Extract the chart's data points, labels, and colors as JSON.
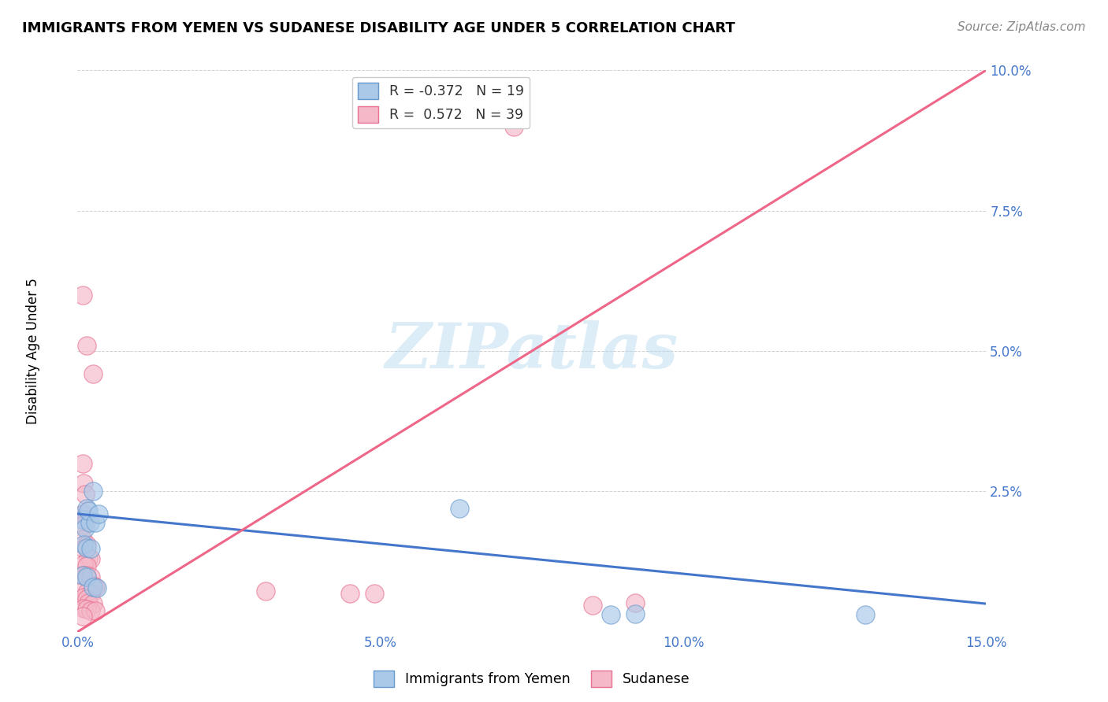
{
  "title": "IMMIGRANTS FROM YEMEN VS SUDANESE DISABILITY AGE UNDER 5 CORRELATION CHART",
  "source": "Source: ZipAtlas.com",
  "ylabel_label": "Disability Age Under 5",
  "legend_label1": "Immigrants from Yemen",
  "legend_label2": "Sudanese",
  "R_blue": -0.372,
  "N_blue": 19,
  "R_pink": 0.572,
  "N_pink": 39,
  "xlim": [
    0.0,
    0.15
  ],
  "ylim": [
    0.0,
    0.1
  ],
  "xticks": [
    0.0,
    0.025,
    0.05,
    0.075,
    0.1,
    0.125,
    0.15
  ],
  "yticks": [
    0.0,
    0.025,
    0.05,
    0.075,
    0.1
  ],
  "xtick_labels": [
    "0.0%",
    "",
    "5.0%",
    "",
    "10.0%",
    "",
    "15.0%"
  ],
  "ytick_labels": [
    "",
    "2.5%",
    "5.0%",
    "7.5%",
    "10.0%"
  ],
  "blue_scatter_fill": "#aac8e8",
  "blue_scatter_edge": "#6699cc",
  "pink_scatter_fill": "#f4b8c8",
  "pink_scatter_edge": "#e87090",
  "blue_line_color": "#4477cc",
  "pink_line_color": "#ee6688",
  "watermark": "ZIPatlas",
  "blue_scatter": [
    [
      0.0008,
      0.02
    ],
    [
      0.0012,
      0.0185
    ],
    [
      0.0015,
      0.022
    ],
    [
      0.002,
      0.0195
    ],
    [
      0.0025,
      0.025
    ],
    [
      0.0018,
      0.0215
    ],
    [
      0.003,
      0.0195
    ],
    [
      0.0035,
      0.021
    ],
    [
      0.001,
      0.0155
    ],
    [
      0.0015,
      0.015
    ],
    [
      0.0022,
      0.0148
    ],
    [
      0.0008,
      0.01
    ],
    [
      0.0015,
      0.0098
    ],
    [
      0.0025,
      0.008
    ],
    [
      0.0032,
      0.0078
    ],
    [
      0.063,
      0.022
    ],
    [
      0.13,
      0.003
    ],
    [
      0.088,
      0.003
    ],
    [
      0.092,
      0.0032
    ]
  ],
  "pink_scatter": [
    [
      0.0008,
      0.06
    ],
    [
      0.0015,
      0.051
    ],
    [
      0.0025,
      0.046
    ],
    [
      0.0008,
      0.03
    ],
    [
      0.001,
      0.0265
    ],
    [
      0.0012,
      0.0245
    ],
    [
      0.0008,
      0.021
    ],
    [
      0.0015,
      0.02
    ],
    [
      0.001,
      0.019
    ],
    [
      0.0008,
      0.0165
    ],
    [
      0.0015,
      0.0155
    ],
    [
      0.001,
      0.0148
    ],
    [
      0.0018,
      0.0132
    ],
    [
      0.0022,
      0.013
    ],
    [
      0.001,
      0.012
    ],
    [
      0.0015,
      0.0118
    ],
    [
      0.0008,
      0.01
    ],
    [
      0.0015,
      0.01
    ],
    [
      0.0022,
      0.0098
    ],
    [
      0.0025,
      0.0082
    ],
    [
      0.003,
      0.008
    ],
    [
      0.0008,
      0.0072
    ],
    [
      0.0015,
      0.007
    ],
    [
      0.0022,
      0.0068
    ],
    [
      0.001,
      0.0062
    ],
    [
      0.0015,
      0.0058
    ],
    [
      0.0018,
      0.0052
    ],
    [
      0.0025,
      0.005
    ],
    [
      0.001,
      0.0042
    ],
    [
      0.0015,
      0.004
    ],
    [
      0.0022,
      0.0038
    ],
    [
      0.003,
      0.0038
    ],
    [
      0.031,
      0.0072
    ],
    [
      0.045,
      0.0068
    ],
    [
      0.049,
      0.0068
    ],
    [
      0.072,
      0.09
    ],
    [
      0.085,
      0.0048
    ],
    [
      0.092,
      0.0052
    ],
    [
      0.0008,
      0.0028
    ]
  ],
  "blue_trendline": [
    0.0,
    0.021,
    0.15,
    0.005
  ],
  "pink_trendline": [
    0.0,
    0.0,
    0.15,
    0.1
  ]
}
